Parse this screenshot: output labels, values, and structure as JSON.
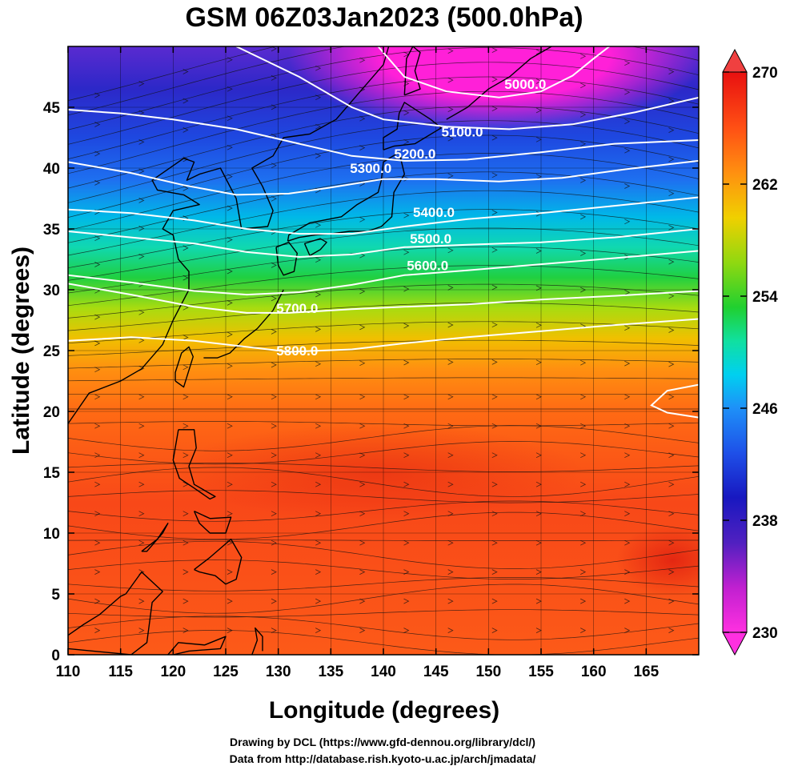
{
  "title": "GSM 06Z03Jan2023 (500.0hPa)",
  "xlabel": "Longitude (degrees)",
  "ylabel": "Latitude (degrees)",
  "footer": {
    "line1": "Drawing by DCL (https://www.gfd-dennou.org/library/dcl/)",
    "line2": "Data from http://database.rish.kyoto-u.ac.jp/arch/jmadata/"
  },
  "colorbar": {
    "ticks": [
      "230",
      "238",
      "246",
      "254",
      "262",
      "270"
    ],
    "colors": [
      "#ff30e0",
      "#a020c0",
      "#2020c8",
      "#1e78f0",
      "#00d8f0",
      "#10e080",
      "#20d020",
      "#d8e000",
      "#ffb000",
      "#ff6010",
      "#f02010"
    ]
  },
  "chart_data": {
    "type": "heatmap",
    "field": "temperature (K) with geopotential height contours (m) and wind streamlines",
    "xlim": [
      110,
      170
    ],
    "ylim": [
      0,
      50
    ],
    "colorbar_range": [
      230,
      270
    ],
    "x_ticks": [
      "110",
      "115",
      "120",
      "125",
      "130",
      "135",
      "140",
      "145",
      "150",
      "155",
      "160",
      "165"
    ],
    "y_ticks": [
      "0",
      "5",
      "10",
      "15",
      "20",
      "25",
      "30",
      "35",
      "40",
      "45"
    ],
    "contours": [
      {
        "level": 5000,
        "label": "5000.0",
        "label_lon": 153.5,
        "label_lat": 46.5
      },
      {
        "level": 5100,
        "label": "5100.0",
        "label_lon": 147.5,
        "label_lat": 42.6
      },
      {
        "level": 5200,
        "label": "5200.0",
        "label_lon": 143.0,
        "label_lat": 40.8
      },
      {
        "level": 5300,
        "label": "5300.0",
        "label_lon": 138.8,
        "label_lat": 39.6
      },
      {
        "level": 5400,
        "label": "5400.0",
        "label_lon": 144.8,
        "label_lat": 36.0
      },
      {
        "level": 5500,
        "label": "5500.0",
        "label_lon": 144.5,
        "label_lat": 33.8
      },
      {
        "level": 5600,
        "label": "5600.0",
        "label_lon": 144.2,
        "label_lat": 31.6
      },
      {
        "level": 5700,
        "label": "5700.0",
        "label_lon": 131.8,
        "label_lat": 28.1
      },
      {
        "level": 5800,
        "label": "5800.0",
        "label_lon": 131.8,
        "label_lat": 24.6
      }
    ]
  }
}
